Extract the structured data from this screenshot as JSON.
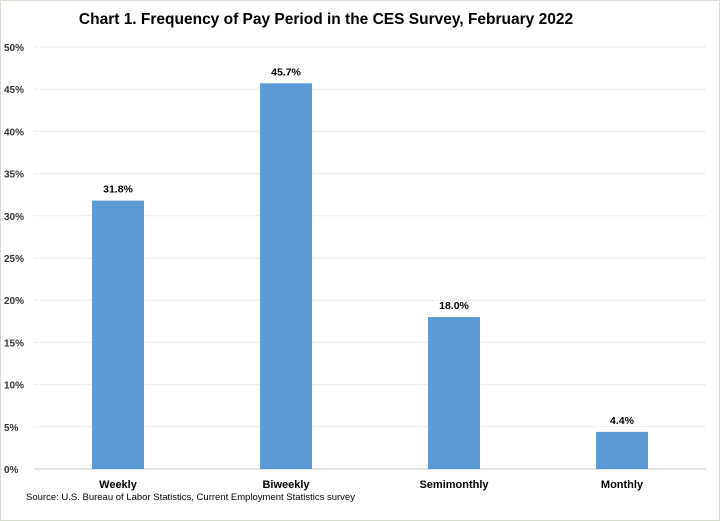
{
  "chart_data": {
    "type": "bar",
    "title": "Chart 1. Frequency of Pay Period in the CES Survey, February 2022",
    "categories": [
      "Weekly",
      "Biweekly",
      "Semimonthly",
      "Monthly"
    ],
    "values": [
      31.8,
      45.7,
      18.0,
      4.4
    ],
    "data_labels": [
      "31.8%",
      "45.7%",
      "18.0%",
      "4.4%"
    ],
    "xlabel": "",
    "ylabel": "",
    "ylim": [
      0,
      50
    ],
    "yticks": [
      "0%",
      "5%",
      "10%",
      "15%",
      "20%",
      "25%",
      "30%",
      "35%",
      "40%",
      "45%",
      "50%"
    ],
    "grid": true,
    "bar_color": "#5b9bd5",
    "source": "Source: U.S. Bureau of Labor Statistics, Current Employment Statistics survey"
  }
}
